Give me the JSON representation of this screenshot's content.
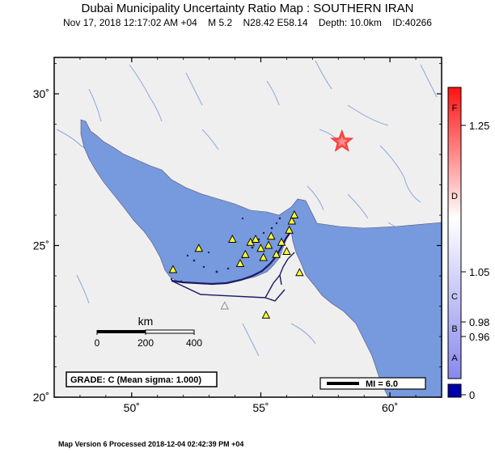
{
  "header": {
    "title": "Dubai Municipality Uncertainty Ratio Map : SOUTHERN IRAN",
    "subtitle": "Nov 17, 2018 12:17:02 AM +04    M 5.2    N28.42 E58.14    Depth: 10.0km    ID:40266"
  },
  "footer": {
    "text": "Map Version 6 Processed 2018-12-04 02:42:39 PM +04"
  },
  "map": {
    "lon_range": [
      47,
      62
    ],
    "lat_range": [
      20,
      31.2
    ],
    "lat_ticks": [
      {
        "value": 30,
        "label": "30˚"
      },
      {
        "value": 25,
        "label": "25˚"
      },
      {
        "value": 20,
        "label": "20˚"
      }
    ],
    "lon_ticks": [
      {
        "value": 50,
        "label": "50˚"
      },
      {
        "value": 55,
        "label": "55˚"
      },
      {
        "value": 60,
        "label": "60˚"
      }
    ],
    "colors": {
      "land": "#efefef",
      "water": "#7799dd",
      "frame": "#000000",
      "boundary": "#1a1a66"
    },
    "epicenter": {
      "lon": 58.14,
      "lat": 28.42,
      "icon": "star-icon",
      "color": "#ff3333"
    },
    "stations": [
      {
        "lon": 51.6,
        "lat": 24.2,
        "fill": "#ffff33"
      },
      {
        "lon": 52.6,
        "lat": 24.9,
        "fill": "#ffff33"
      },
      {
        "lon": 53.9,
        "lat": 25.2,
        "fill": "#ffff33"
      },
      {
        "lon": 54.2,
        "lat": 24.4,
        "fill": "#ffff33"
      },
      {
        "lon": 54.4,
        "lat": 24.7,
        "fill": "#ffff33"
      },
      {
        "lon": 54.6,
        "lat": 25.1,
        "fill": "#ffff33"
      },
      {
        "lon": 54.8,
        "lat": 25.2,
        "fill": "#ffff33"
      },
      {
        "lon": 55.0,
        "lat": 24.9,
        "fill": "#ffff33"
      },
      {
        "lon": 55.1,
        "lat": 24.6,
        "fill": "#ffff33"
      },
      {
        "lon": 55.3,
        "lat": 25.0,
        "fill": "#ffff33"
      },
      {
        "lon": 55.4,
        "lat": 25.3,
        "fill": "#ffff33"
      },
      {
        "lon": 55.6,
        "lat": 24.7,
        "fill": "#ffff33"
      },
      {
        "lon": 55.8,
        "lat": 25.1,
        "fill": "#ffff33"
      },
      {
        "lon": 56.0,
        "lat": 24.8,
        "fill": "#ffff33"
      },
      {
        "lon": 56.1,
        "lat": 25.5,
        "fill": "#ffff33"
      },
      {
        "lon": 56.2,
        "lat": 25.8,
        "fill": "#ffff33"
      },
      {
        "lon": 56.3,
        "lat": 26.0,
        "fill": "#ffff33"
      },
      {
        "lon": 56.5,
        "lat": 24.1,
        "fill": "#ffff33"
      },
      {
        "lon": 55.2,
        "lat": 22.7,
        "fill": "#ffff33"
      },
      {
        "lon": 53.6,
        "lat": 23.0,
        "fill": "#f2f2f2"
      }
    ]
  },
  "scale_bar": {
    "unit": "km",
    "ticks": [
      "0",
      "200",
      "400"
    ]
  },
  "grade": {
    "text": "GRADE: C (Mean sigma: 1.000)"
  },
  "mi_legend": {
    "text": "MI = 6.0"
  },
  "colorbar": {
    "levels": [
      {
        "value": 0.0,
        "label": "0"
      },
      {
        "value": 0.96,
        "label": "0.96"
      },
      {
        "value": 0.98,
        "label": "0.98"
      },
      {
        "value": 1.05,
        "label": "1.05"
      },
      {
        "value": 1.25,
        "label": "1.25"
      }
    ],
    "grades": [
      "A",
      "B",
      "C",
      "D",
      "F"
    ],
    "colors": {
      "low": "#0000aa",
      "mid": "#ffffff",
      "high": "#ff0000"
    }
  }
}
